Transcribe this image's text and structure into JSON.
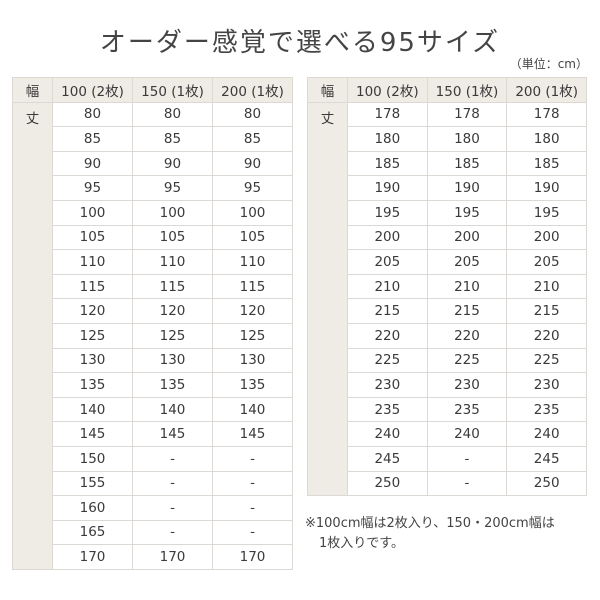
{
  "title": "オーダー感覚で選べる95サイズ",
  "unit": "（単位：cm）",
  "header": {
    "width_label": "幅",
    "columns": [
      "100 (2枚)",
      "150 (1枚)",
      "200 (1枚)"
    ],
    "length_label": "丈"
  },
  "tables": [
    {
      "rows": [
        [
          "80",
          "80",
          "80"
        ],
        [
          "85",
          "85",
          "85"
        ],
        [
          "90",
          "90",
          "90"
        ],
        [
          "95",
          "95",
          "95"
        ],
        [
          "100",
          "100",
          "100"
        ],
        [
          "105",
          "105",
          "105"
        ],
        [
          "110",
          "110",
          "110"
        ],
        [
          "115",
          "115",
          "115"
        ],
        [
          "120",
          "120",
          "120"
        ],
        [
          "125",
          "125",
          "125"
        ],
        [
          "130",
          "130",
          "130"
        ],
        [
          "135",
          "135",
          "135"
        ],
        [
          "140",
          "140",
          "140"
        ],
        [
          "145",
          "145",
          "145"
        ],
        [
          "150",
          "-",
          "-"
        ],
        [
          "155",
          "-",
          "-"
        ],
        [
          "160",
          "-",
          "-"
        ],
        [
          "165",
          "-",
          "-"
        ],
        [
          "170",
          "170",
          "170"
        ]
      ]
    },
    {
      "rows": [
        [
          "178",
          "178",
          "178"
        ],
        [
          "180",
          "180",
          "180"
        ],
        [
          "185",
          "185",
          "185"
        ],
        [
          "190",
          "190",
          "190"
        ],
        [
          "195",
          "195",
          "195"
        ],
        [
          "200",
          "200",
          "200"
        ],
        [
          "205",
          "205",
          "205"
        ],
        [
          "210",
          "210",
          "210"
        ],
        [
          "215",
          "215",
          "215"
        ],
        [
          "220",
          "220",
          "220"
        ],
        [
          "225",
          "225",
          "225"
        ],
        [
          "230",
          "230",
          "230"
        ],
        [
          "235",
          "235",
          "235"
        ],
        [
          "240",
          "240",
          "240"
        ],
        [
          "245",
          "-",
          "245"
        ],
        [
          "250",
          "-",
          "250"
        ]
      ]
    }
  ],
  "note": {
    "line1": "※100cm幅は2枚入り、150・200cm幅は",
    "line2": "1枚入りです。"
  },
  "colors": {
    "header_bg": "#efebe5",
    "border": "#dcd9d4",
    "text": "#3a3a3a"
  }
}
